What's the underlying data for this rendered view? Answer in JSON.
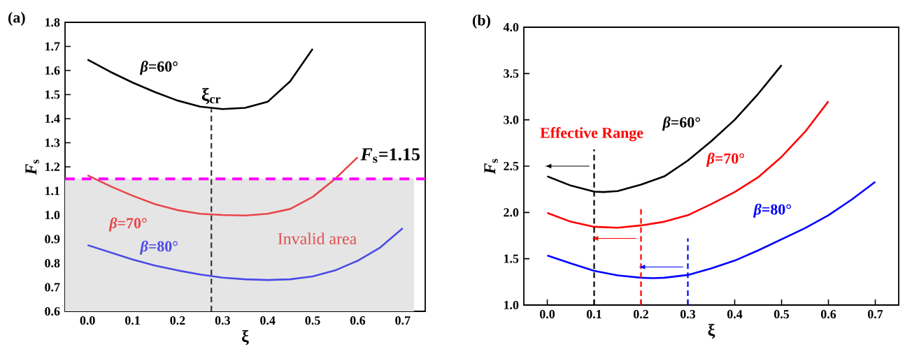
{
  "chart_data": [
    {
      "type": "line",
      "title": "(a)",
      "xlabel": "ξ",
      "ylabel": "*F*$_{s}$",
      "xlim": [
        -0.05,
        0.75
      ],
      "ylim": [
        0.6,
        1.8
      ],
      "xticks": [
        {
          "value": 0,
          "label": "0.0"
        },
        0.1,
        0.2,
        0.3,
        0.4,
        0.5,
        0.6,
        0.7
      ],
      "yticks": [
        0.6,
        0.7,
        0.8,
        0.9,
        {
          "value": 1,
          "label": "1.0"
        },
        1.1,
        1.2,
        1.3,
        1.4,
        1.5,
        1.6,
        1.7,
        1.8
      ],
      "series": [
        {
          "name": "*β*=60°",
          "color": "#000000",
          "x": [
            0,
            0.05,
            0.1,
            0.15,
            0.2,
            0.25,
            0.3,
            0.35,
            0.4,
            0.45,
            0.5
          ],
          "values": [
            1.645,
            1.595,
            1.55,
            1.51,
            1.475,
            1.45,
            1.44,
            1.445,
            1.47,
            1.555,
            1.69
          ]
        },
        {
          "name": "*β*=70°",
          "color": "#e8474a",
          "x": [
            0,
            0.05,
            0.1,
            0.15,
            0.2,
            0.25,
            0.3,
            0.35,
            0.4,
            0.45,
            0.5,
            0.55,
            0.6
          ],
          "values": [
            1.165,
            1.12,
            1.08,
            1.045,
            1.02,
            1.005,
            1.0,
            0.998,
            1.005,
            1.025,
            1.075,
            1.15,
            1.24
          ]
        },
        {
          "name": "*β*=80°",
          "color": "#4a4ae8",
          "x": [
            0,
            0.05,
            0.1,
            0.15,
            0.2,
            0.25,
            0.3,
            0.35,
            0.4,
            0.45,
            0.5,
            0.55,
            0.6,
            0.65,
            0.7
          ],
          "values": [
            0.875,
            0.845,
            0.815,
            0.79,
            0.77,
            0.753,
            0.74,
            0.733,
            0.73,
            0.733,
            0.745,
            0.77,
            0.81,
            0.865,
            0.945
          ]
        }
      ],
      "bands": [
        {
          "axis": "y",
          "from": 0.6,
          "to": 1.15,
          "label": "Invalid area",
          "color": "#e5e5e5"
        }
      ],
      "ref_lines": [
        {
          "axis": "x",
          "value": 0.275,
          "label": "ξ$_{cr}$",
          "color": "#333333",
          "line_style": "dashed"
        },
        {
          "axis": "y",
          "value": 1.15,
          "label": "*F*$_{s}$=1.15",
          "color": "#ff00ff",
          "line_style": "dashed"
        }
      ]
    },
    {
      "type": "line",
      "title": "(b)",
      "xlabel": "ξ",
      "ylabel": "*F*$_{s}$",
      "xlim": [
        -0.05,
        0.75
      ],
      "ylim": [
        1.0,
        4.0
      ],
      "xticks": [
        {
          "value": 0,
          "label": "0.0"
        },
        0.1,
        0.2,
        0.3,
        0.4,
        0.5,
        0.6,
        0.7
      ],
      "yticks": [
        {
          "value": 1,
          "label": "1.0"
        },
        1.5,
        {
          "value": 2,
          "label": "2.0"
        },
        2.5,
        {
          "value": 3,
          "label": "3.0"
        },
        3.5,
        {
          "value": 4,
          "label": "4.0"
        }
      ],
      "series": [
        {
          "name": "*β*=60°",
          "color": "#000000",
          "x": [
            0,
            0.05,
            0.1,
            0.12,
            0.15,
            0.2,
            0.25,
            0.3,
            0.35,
            0.4,
            0.45,
            0.5
          ],
          "values": [
            2.39,
            2.29,
            2.225,
            2.22,
            2.23,
            2.3,
            2.39,
            2.56,
            2.77,
            3.0,
            3.28,
            3.59
          ]
        },
        {
          "name": "*β*=70°",
          "color": "#ff0000",
          "x": [
            0,
            0.05,
            0.1,
            0.15,
            0.2,
            0.25,
            0.3,
            0.35,
            0.4,
            0.45,
            0.5,
            0.55,
            0.6
          ],
          "values": [
            1.995,
            1.9,
            1.845,
            1.835,
            1.86,
            1.9,
            1.97,
            2.09,
            2.22,
            2.38,
            2.6,
            2.87,
            3.2
          ]
        },
        {
          "name": "*β*=80°",
          "color": "#0000ff",
          "x": [
            0,
            0.05,
            0.1,
            0.15,
            0.2,
            0.225,
            0.25,
            0.3,
            0.35,
            0.4,
            0.45,
            0.5,
            0.55,
            0.6,
            0.65,
            0.7
          ],
          "values": [
            1.535,
            1.45,
            1.37,
            1.32,
            1.295,
            1.29,
            1.295,
            1.325,
            1.395,
            1.48,
            1.59,
            1.71,
            1.83,
            1.97,
            2.14,
            2.33
          ]
        }
      ],
      "ref_lines": [
        {
          "axis": "x",
          "value": 0.1,
          "color": "#000000",
          "line_style": "dashed"
        },
        {
          "axis": "x",
          "value": 0.2,
          "color": "#ff0000",
          "line_style": "dashed"
        },
        {
          "axis": "x",
          "value": 0.3,
          "color": "#0000ff",
          "line_style": "dashed"
        }
      ],
      "annotations": [
        "Effective Range"
      ]
    }
  ]
}
